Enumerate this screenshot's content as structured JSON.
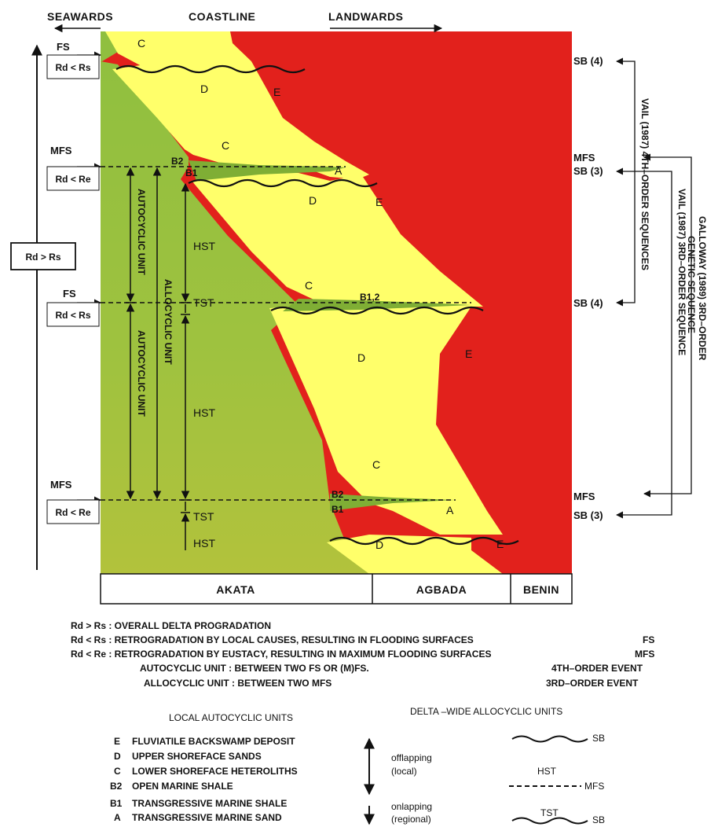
{
  "colors": {
    "green": "#97bf3e",
    "yellow": "#ffff6a",
    "red": "#e2211c"
  },
  "top_labels": {
    "seawards": "SEAWARDS",
    "coastline": "COASTLINE",
    "landwards": "LANDWARDS"
  },
  "left": {
    "fs_top": "FS",
    "rd_rs_top": "Rd < Rs",
    "mfs_1": "MFS",
    "rd_re_1": "Rd < Re",
    "rd_gt_rs": "Rd > Rs",
    "fs_mid": "FS",
    "rd_rs_mid": "Rd < Rs",
    "mfs_2": "MFS",
    "rd_re_2": "Rd < Re"
  },
  "units": {
    "c1": "C",
    "d1": "D",
    "e1": "E",
    "c2": "C",
    "b2_1": "B2",
    "b1_1": "B1",
    "a1": "A",
    "d2": "D",
    "e2": "E",
    "c3": "C",
    "b12": "B1,2",
    "d3": "D",
    "e3": "E",
    "c4": "C",
    "b2_2": "B2",
    "b1_2": "B1",
    "a2": "A",
    "d4": "D",
    "e4": "E"
  },
  "systems": {
    "hst1": "HST",
    "tst1": "TST",
    "hst2": "HST",
    "tst2": "TST",
    "hst3": "HST"
  },
  "vertical_labels": {
    "autocyclic_1": "AUTOCYCLIC UNIT",
    "allocyclic": "ALLOCYCLIC UNIT",
    "autocyclic_2": "AUTOCYCLIC UNIT",
    "vail_4th": "VAIL (1987) 4TH–ORDER SEQUENCES",
    "vail_3rd": "VAIL (1987) 3RD–ORDER SEQUENCE",
    "galloway_1": "GALLOWAY (1989) 3RD–ORDER",
    "galloway_2": "GENETIC SEQUENCE"
  },
  "right": {
    "sb4_top": "SB (4)",
    "mfs_1": "MFS",
    "sb3_1": "SB (3)",
    "sb4_mid": "SB (4)",
    "mfs_2": "MFS",
    "sb3_2": "SB (3)"
  },
  "formations": {
    "akata": "AKATA",
    "agbada": "AGBADA",
    "benin": "BENIN"
  },
  "definitions": [
    {
      "term": "Rd > Rs",
      "text": " : OVERALL DELTA PROGRADATION",
      "tag": ""
    },
    {
      "term": "Rd < Rs",
      "text": " : RETROGRADATION BY LOCAL CAUSES, RESULTING IN FLOODING SURFACES",
      "tag": "FS"
    },
    {
      "term": "Rd < Re",
      "text": " : RETROGRADATION BY EUSTACY, RESULTING IN MAXIMUM FLOODING SURFACES",
      "tag": "MFS"
    },
    {
      "term": "",
      "text": "AUTOCYCLIC UNIT : BETWEEN TWO FS OR (M)FS.",
      "tag": "4TH–ORDER EVENT"
    },
    {
      "term": "",
      "text": "ALLOCYCLIC UNIT : BETWEEN TWO MFS",
      "tag": "3RD–ORDER EVENT"
    }
  ],
  "legend": {
    "local_title": "LOCAL AUTOCYCLIC UNITS",
    "delta_title": "DELTA –WIDE ALLOCYCLIC UNITS",
    "items": [
      {
        "code": "E",
        "desc": "FLUVIATILE BACKSWAMP DEPOSIT"
      },
      {
        "code": "D",
        "desc": "UPPER SHOREFACE SANDS"
      },
      {
        "code": "C",
        "desc": "LOWER SHOREFACE HETEROLITHS"
      },
      {
        "code": "B2",
        "desc": "OPEN MARINE SHALE"
      },
      {
        "code": "B1",
        "desc": "TRANSGRESSIVE MARINE SHALE"
      },
      {
        "code": "A",
        "desc": "TRANSGRESSIVE MARINE SAND"
      }
    ],
    "offlapping": "offlapping",
    "offlapping_sub": "(local)",
    "onlapping": "onlapping",
    "onlapping_sub": "(regional)",
    "sb_1": "SB",
    "hst": "HST",
    "mfs": "MFS",
    "tst": "TST",
    "sb_2": "SB"
  }
}
